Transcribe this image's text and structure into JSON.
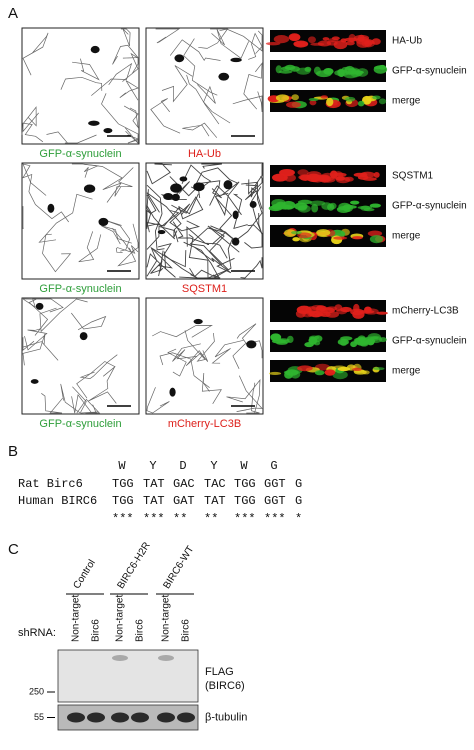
{
  "panel_a": {
    "label": "A",
    "rows": [
      {
        "captions": [
          "GFP-α-synuclein",
          "HA-Ub"
        ],
        "strip_labels": [
          "HA-Ub",
          "GFP-α-synuclein",
          "merge"
        ]
      },
      {
        "captions": [
          "GFP-α-synuclein",
          "SQSTM1"
        ],
        "strip_labels": [
          "SQSTM1",
          "GFP-α-synuclein",
          "merge"
        ]
      },
      {
        "captions": [
          "GFP-α-synuclein",
          "mCherry-LC3B"
        ],
        "strip_labels": [
          "mCherry-LC3B",
          "GFP-α-synuclein",
          "merge"
        ]
      }
    ]
  },
  "panel_b": {
    "label": "B",
    "amino_acids": [
      "W",
      "Y",
      "D",
      "Y",
      "W",
      "G"
    ],
    "sequences": [
      {
        "name": "Rat Birc6",
        "codons": [
          "TGG",
          "TAT",
          "GAC",
          "TAC",
          "TGG",
          "GGT",
          "G"
        ]
      },
      {
        "name": "Human BIRC6",
        "codons": [
          "TGG",
          "TAT",
          "GAT",
          "TAT",
          "TGG",
          "GGT",
          "G"
        ]
      }
    ],
    "conservation": [
      "***",
      "***",
      "**",
      "**",
      "***",
      "***",
      "*"
    ]
  },
  "panel_c": {
    "label": "C",
    "groups": [
      "Control",
      "BIRC6-H2R",
      "BIRC6-WT"
    ],
    "shrna_label": "shRNA:",
    "lanes": [
      "Non-target",
      "Birc6",
      "Non-target",
      "Birc6",
      "Non-target",
      "Birc6"
    ],
    "blots": [
      {
        "labels": [
          "FLAG",
          "(BIRC6)"
        ],
        "marker": 250
      },
      {
        "labels": [
          "β-tubulin"
        ],
        "marker": 55
      }
    ]
  }
}
